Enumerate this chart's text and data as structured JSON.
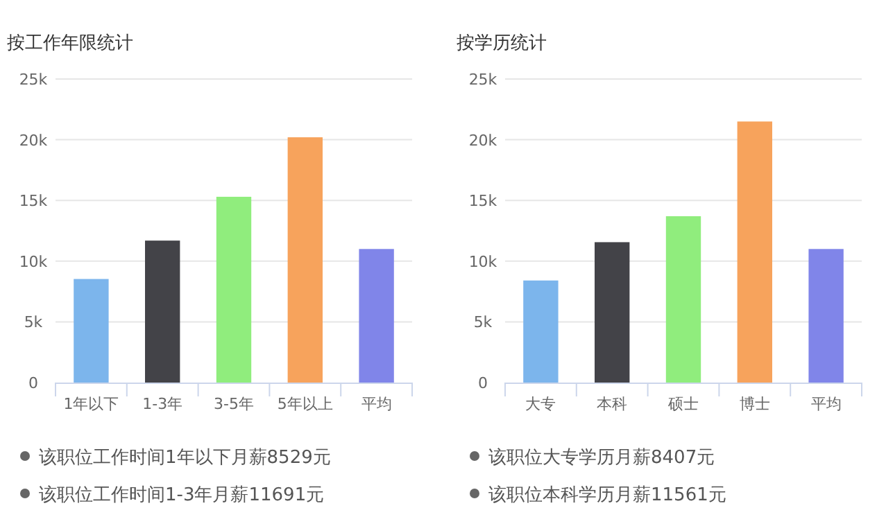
{
  "chart_data": [
    {
      "type": "bar",
      "title": "按工作年限统计",
      "categories": [
        "1年以下",
        "1-3年",
        "3-5年",
        "5年以上",
        "平均"
      ],
      "values": [
        8529,
        11691,
        15300,
        20200,
        11000
      ],
      "colors": [
        "#7cb5ec",
        "#434348",
        "#90ed7d",
        "#f7a35c",
        "#8085e9"
      ],
      "ylim": [
        0,
        25000
      ],
      "yticks": [
        {
          "value": 0,
          "label": "0"
        },
        {
          "value": 5000,
          "label": "5k"
        },
        {
          "value": 10000,
          "label": "10k"
        },
        {
          "value": 15000,
          "label": "15k"
        },
        {
          "value": 20000,
          "label": "20k"
        },
        {
          "value": 25000,
          "label": "25k"
        }
      ],
      "grid": "y",
      "annotations": [
        "该职位工作时间1年以下月薪8529元",
        "该职位工作时间1-3年月薪11691元"
      ]
    },
    {
      "type": "bar",
      "title": "按学历统计",
      "categories": [
        "大专",
        "本科",
        "硕士",
        "博士",
        "平均"
      ],
      "values": [
        8407,
        11561,
        13700,
        21500,
        11000
      ],
      "colors": [
        "#7cb5ec",
        "#434348",
        "#90ed7d",
        "#f7a35c",
        "#8085e9"
      ],
      "ylim": [
        0,
        25000
      ],
      "yticks": [
        {
          "value": 0,
          "label": "0"
        },
        {
          "value": 5000,
          "label": "5k"
        },
        {
          "value": 10000,
          "label": "10k"
        },
        {
          "value": 15000,
          "label": "15k"
        },
        {
          "value": 20000,
          "label": "20k"
        },
        {
          "value": 25000,
          "label": "25k"
        }
      ],
      "grid": "y",
      "annotations": [
        "该职位大专学历月薪8407元",
        "该职位本科学历月薪11561元"
      ]
    }
  ]
}
